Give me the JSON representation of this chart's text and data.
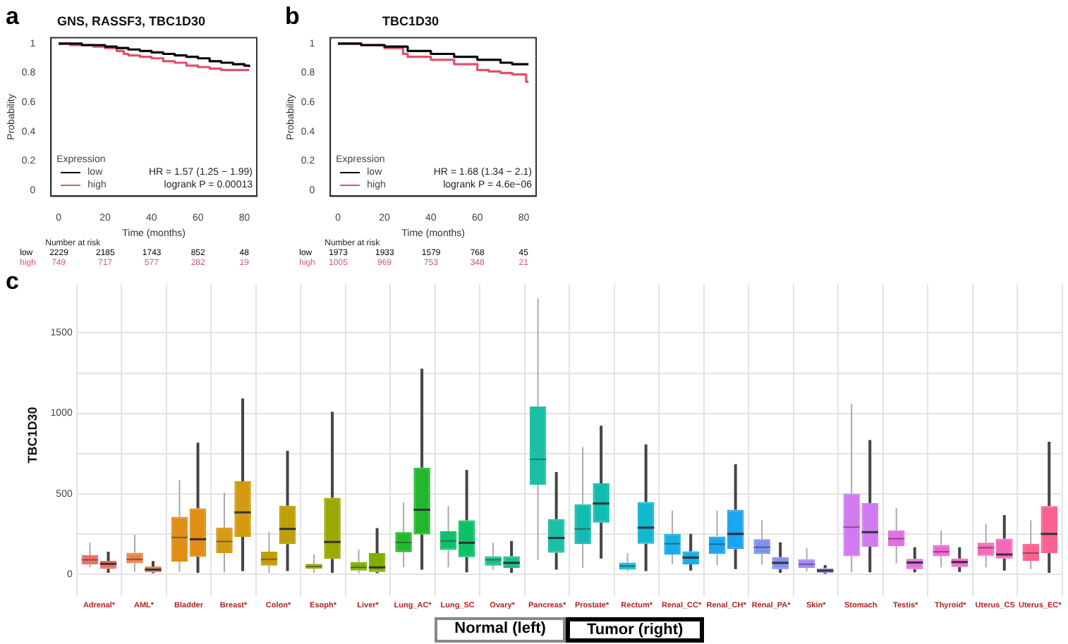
{
  "chart_data": [
    {
      "type": "step",
      "title": "GNS, RASSF3, TBC1D30",
      "xlabel": "Time (months)",
      "ylabel": "Probability",
      "legend_title": "Expression",
      "legend": "bottom left",
      "grid": false,
      "xlim": [
        -3.3,
        85.3
      ],
      "xticks": [
        0,
        20,
        40,
        60,
        80
      ],
      "ylim": [
        -0.04,
        1.04
      ],
      "yticks": [
        0,
        0.2,
        0.4,
        0.6,
        0.8,
        1
      ],
      "series": [
        {
          "name": "low",
          "color": "#000000",
          "x": [
            0,
            5,
            10,
            15,
            20,
            25,
            30,
            35,
            40,
            45,
            50,
            55,
            60,
            65,
            70,
            75,
            80,
            82
          ],
          "values": [
            1,
            1,
            0.99,
            0.99,
            0.98,
            0.97,
            0.96,
            0.95,
            0.94,
            0.93,
            0.92,
            0.91,
            0.9,
            0.88,
            0.87,
            0.86,
            0.85,
            0.84
          ]
        },
        {
          "name": "high",
          "color": "#df536b",
          "x": [
            0,
            5,
            10,
            15,
            20,
            25,
            28,
            30,
            35,
            40,
            45,
            50,
            55,
            60,
            65,
            70,
            75,
            80,
            82
          ],
          "values": [
            1,
            0.99,
            0.99,
            0.98,
            0.97,
            0.95,
            0.93,
            0.92,
            0.91,
            0.9,
            0.88,
            0.87,
            0.85,
            0.84,
            0.83,
            0.82,
            0.82,
            0.82,
            0.82
          ]
        }
      ],
      "annotations": [
        "a",
        "HR = 1.57 (1.25 − 1.99)",
        "logrank P = 0.00013",
        "Number at risk",
        "2229",
        "2185",
        "1743",
        "852",
        "48",
        "749",
        "717",
        "577",
        "282",
        "19"
      ]
    },
    {
      "type": "step",
      "title": "TBC1D30",
      "xlabel": "Time (months)",
      "ylabel": "Probability",
      "legend_title": "Expression",
      "legend": "bottom left",
      "grid": false,
      "xlim": [
        -3.3,
        85.3
      ],
      "xticks": [
        0,
        20,
        40,
        60,
        80
      ],
      "ylim": [
        -0.04,
        1.04
      ],
      "yticks": [
        0,
        0.2,
        0.4,
        0.6,
        0.8,
        1
      ],
      "series": [
        {
          "name": "low",
          "color": "#000000",
          "x": [
            0,
            10,
            20,
            30,
            40,
            50,
            60,
            70,
            75,
            80,
            82
          ],
          "values": [
            1,
            0.99,
            0.98,
            0.95,
            0.93,
            0.91,
            0.89,
            0.87,
            0.86,
            0.86,
            0.86
          ]
        },
        {
          "name": "high",
          "color": "#df536b",
          "x": [
            0,
            10,
            20,
            28,
            30,
            40,
            50,
            60,
            65,
            70,
            75,
            80,
            81,
            82
          ],
          "values": [
            1,
            0.99,
            0.97,
            0.93,
            0.91,
            0.89,
            0.86,
            0.82,
            0.81,
            0.8,
            0.79,
            0.79,
            0.74,
            0.74
          ]
        }
      ],
      "annotations": [
        "b",
        "HR = 1.68 (1.34 − 2.1)",
        "logrank P = 4.6e−06",
        "Number at risk",
        "1973",
        "1933",
        "1579",
        "768",
        "45",
        "1005",
        "969",
        "753",
        "348",
        "21"
      ]
    },
    {
      "type": "box",
      "ylabel": "TBC1D30",
      "grid": true,
      "ylim": [
        -70,
        1800
      ],
      "yticks": [
        0,
        {
          "value": 250,
          "label": null
        },
        500,
        {
          "value": 750,
          "label": null
        },
        1000,
        {
          "value": 1250,
          "label": null
        },
        1500
      ],
      "categories": [
        "Adrenal*",
        "AML*",
        "Bladder",
        "Breast*",
        "Colon*",
        "Esoph*",
        "Liver*",
        "Lung_AC*",
        "Lung_SC",
        "Ovary*",
        "Pancreas*",
        "Prostate*",
        "Rectum*",
        "Renal_CC*",
        "Renal_CH*",
        "Renal_PA*",
        "Skin*",
        "Stomach",
        "Testis*",
        "Thyroid*",
        "Uterus_CS",
        "Uterus_EC*"
      ],
      "series": [
        {
          "colors": [
            "#e8736a",
            "#e8834a",
            "#e08e14",
            "#d49a12",
            "#c0a000",
            "#9aa800",
            "#7fb000",
            "#22b82e",
            "#10bf6a",
            "#14c08c",
            "#1cbfa6",
            "#12bcb0",
            "#12b8d0",
            "#18aee6",
            "#1ba4f0",
            "#7c92f0",
            "#a58af5",
            "#d07af2",
            "#e070e0",
            "#ee68d2",
            "#f868b8",
            "#fb6290"
          ],
          "boxes": [
            {
              "low": 42,
              "q1": 61,
              "median": 89,
              "q3": 117,
              "high": 195
            },
            {
              "low": 14,
              "q1": 67,
              "median": 92,
              "q3": 133,
              "high": 245
            },
            {
              "low": 14,
              "q1": 78,
              "median": 228,
              "q3": 356,
              "high": 584
            },
            {
              "low": 11,
              "q1": 131,
              "median": 203,
              "q3": 289,
              "high": 506
            },
            {
              "low": 8,
              "q1": 53,
              "median": 92,
              "q3": 139,
              "high": 264
            },
            {
              "low": 8,
              "q1": 33,
              "median": 47,
              "q3": 64,
              "high": 122
            },
            {
              "low": 6,
              "q1": 22,
              "median": 42,
              "q3": 75,
              "high": 153
            },
            {
              "low": 44,
              "q1": 136,
              "median": 197,
              "q3": 261,
              "high": 445
            },
            {
              "low": 42,
              "q1": 150,
              "median": 206,
              "q3": 267,
              "high": 423
            },
            {
              "low": 28,
              "q1": 53,
              "median": 89,
              "q3": 111,
              "high": 195
            },
            {
              "low": 89,
              "q1": 556,
              "median": 714,
              "q3": 1042,
              "high": 1713
            },
            {
              "low": 39,
              "q1": 186,
              "median": 281,
              "q3": 434,
              "high": 790
            },
            {
              "low": 17,
              "q1": 28,
              "median": 50,
              "q3": 72,
              "high": 131
            },
            {
              "low": 64,
              "q1": 122,
              "median": 189,
              "q3": 250,
              "high": 395
            },
            {
              "low": 56,
              "q1": 125,
              "median": 186,
              "q3": 234,
              "high": 395
            },
            {
              "low": 58,
              "q1": 125,
              "median": 167,
              "q3": 217,
              "high": 334
            },
            {
              "low": 17,
              "q1": 39,
              "median": 61,
              "q3": 92,
              "high": 161
            },
            {
              "low": 11,
              "q1": 111,
              "median": 292,
              "q3": 500,
              "high": 1059
            },
            {
              "low": 67,
              "q1": 175,
              "median": 220,
              "q3": 272,
              "high": 411
            },
            {
              "low": 42,
              "q1": 111,
              "median": 139,
              "q3": 181,
              "high": 272
            },
            {
              "low": 42,
              "q1": 114,
              "median": 164,
              "q3": 195,
              "high": 314
            },
            {
              "low": 31,
              "q1": 83,
              "median": 131,
              "q3": 189,
              "high": 334
            }
          ]
        },
        {
          "colors": [
            "#e8736a",
            "#e8834a",
            "#e08e14",
            "#d49a12",
            "#c0a000",
            "#9aa800",
            "#7fb000",
            "#22b82e",
            "#10bf6a",
            "#14c08c",
            "#1cbfa6",
            "#12bcb0",
            "#12b8d0",
            "#18aee6",
            "#1ba4f0",
            "#7c92f0",
            "#a58af5",
            "#d07af2",
            "#e070e0",
            "#ee68d2",
            "#f868b8",
            "#fb6290"
          ],
          "boxes": [
            {
              "low": 8,
              "q1": 33,
              "median": 64,
              "q3": 83,
              "high": 139
            },
            {
              "low": 6,
              "q1": 11,
              "median": 28,
              "q3": 47,
              "high": 81
            },
            {
              "low": 8,
              "q1": 108,
              "median": 217,
              "q3": 409,
              "high": 817
            },
            {
              "low": 19,
              "q1": 231,
              "median": 384,
              "q3": 578,
              "high": 1092
            },
            {
              "low": 19,
              "q1": 186,
              "median": 281,
              "q3": 425,
              "high": 767
            },
            {
              "low": 8,
              "q1": 95,
              "median": 200,
              "q3": 475,
              "high": 1009
            },
            {
              "low": 6,
              "q1": 14,
              "median": 42,
              "q3": 131,
              "high": 286
            },
            {
              "low": 28,
              "q1": 247,
              "median": 400,
              "q3": 662,
              "high": 1277
            },
            {
              "low": 11,
              "q1": 106,
              "median": 195,
              "q3": 334,
              "high": 648
            },
            {
              "low": 8,
              "q1": 39,
              "median": 70,
              "q3": 111,
              "high": 206
            },
            {
              "low": 28,
              "q1": 133,
              "median": 225,
              "q3": 342,
              "high": 634
            },
            {
              "low": 97,
              "q1": 320,
              "median": 439,
              "q3": 564,
              "high": 923
            },
            {
              "low": 19,
              "q1": 189,
              "median": 289,
              "q3": 448,
              "high": 806
            },
            {
              "low": 22,
              "q1": 61,
              "median": 103,
              "q3": 142,
              "high": 250
            },
            {
              "low": 31,
              "q1": 156,
              "median": 250,
              "q3": 400,
              "high": 684
            },
            {
              "low": 8,
              "q1": 31,
              "median": 70,
              "q3": 106,
              "high": 197
            },
            {
              "low": 3,
              "q1": 8,
              "median": 22,
              "q3": 36,
              "high": 56
            },
            {
              "low": 11,
              "q1": 170,
              "median": 261,
              "q3": 442,
              "high": 834
            },
            {
              "low": 11,
              "q1": 31,
              "median": 72,
              "q3": 95,
              "high": 167
            },
            {
              "low": 14,
              "q1": 44,
              "median": 75,
              "q3": 97,
              "high": 167
            },
            {
              "low": 22,
              "q1": 97,
              "median": 122,
              "q3": 220,
              "high": 367
            },
            {
              "low": 8,
              "q1": 131,
              "median": 250,
              "q3": 423,
              "high": 823
            }
          ]
        }
      ],
      "annotations": [
        "c",
        "Normal (left)",
        "Tumor (right)"
      ]
    }
  ]
}
